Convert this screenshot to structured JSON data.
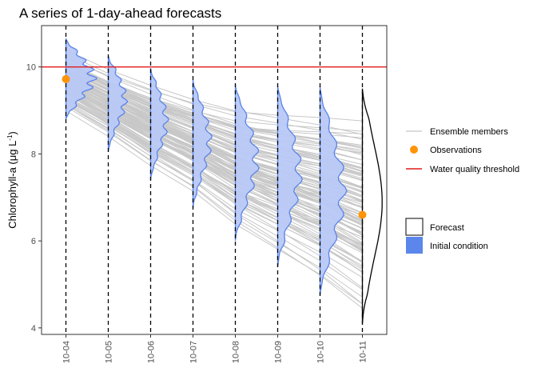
{
  "chart_data": {
    "type": "line",
    "title": "A series of 1-day-ahead forecasts",
    "ylabel_main": "Chlorophyll-a (",
    "ylabel_mu": "μg L",
    "ylabel_exp": "-1",
    "ylabel_close": ")",
    "xlabel": "",
    "ylim": [
      3.85,
      10.95
    ],
    "yticks": [
      4,
      6,
      8,
      10
    ],
    "categories": [
      "10-04",
      "10-05",
      "10-06",
      "10-07",
      "10-08",
      "10-09",
      "10-10",
      "10-11"
    ],
    "threshold": 10.0,
    "observations": [
      {
        "x": "10-04",
        "y": 9.72
      },
      {
        "x": "10-11",
        "y": 6.6
      }
    ],
    "ensemble_envelope": {
      "upper": [
        10.65,
        10.25,
        9.97,
        9.72,
        9.6,
        9.57,
        9.55,
        9.5
      ],
      "lower": [
        8.8,
        8.2,
        7.5,
        6.9,
        6.1,
        5.5,
        4.9,
        4.2
      ]
    },
    "initial_condition_densities": [
      {
        "x": "10-04",
        "min": 8.8,
        "max": 10.65,
        "mode": 9.75,
        "peak": 1.0
      },
      {
        "x": "10-05",
        "min": 8.05,
        "max": 10.25,
        "mode": 9.25,
        "peak": 0.62
      },
      {
        "x": "10-06",
        "min": 7.4,
        "max": 9.97,
        "mode": 8.75,
        "peak": 0.58
      },
      {
        "x": "10-07",
        "min": 6.75,
        "max": 9.7,
        "mode": 8.3,
        "peak": 0.62
      },
      {
        "x": "10-08",
        "min": 6.0,
        "max": 9.6,
        "mode": 7.85,
        "peak": 0.78
      },
      {
        "x": "10-09",
        "min": 5.4,
        "max": 9.57,
        "mode": 7.55,
        "peak": 0.8
      },
      {
        "x": "10-10",
        "min": 4.75,
        "max": 9.55,
        "mode": 7.15,
        "peak": 0.86
      }
    ],
    "forecast_density": {
      "x": "10-11",
      "min": 4.1,
      "max": 9.5,
      "mode": 6.9,
      "peak": 0.75
    },
    "legend": {
      "ensemble": "Ensemble members",
      "observations": "Observations",
      "threshold": "Water quality threshold",
      "forecast": "Forecast",
      "initial": "Initial condition"
    },
    "colors": {
      "ensemble": "#c8c8c8",
      "observation": "#ff9408",
      "threshold": "#e41a1c",
      "initial_fill": "#b8c9f7",
      "initial_line": "#5a84ea",
      "forecast_line": "#000000",
      "legend_initial": "#5b86ec"
    }
  }
}
